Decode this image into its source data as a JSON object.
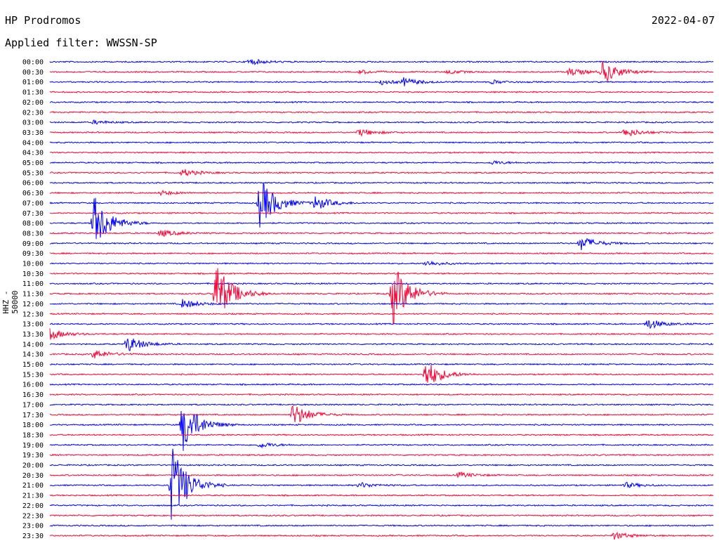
{
  "header": {
    "station": "HP Prodromos",
    "date": "2022-04-07",
    "filter_label": "Applied filter: WWSSN-SP"
  },
  "axis": {
    "ylabel": "HHZ - 50000"
  },
  "colors": {
    "trace_a": "#0000ff",
    "trace_b": "#ff0033",
    "text": "#000000"
  },
  "chart_data": {
    "type": "line",
    "title": "HP Prodromos",
    "subtitle": "Applied filter: WWSSN-SP",
    "ylabel": "HHZ - 50000",
    "xlabel": "",
    "row_labels": [
      "00:00",
      "00:30",
      "01:00",
      "01:30",
      "02:00",
      "02:30",
      "03:00",
      "03:30",
      "04:00",
      "04:30",
      "05:00",
      "05:30",
      "06:00",
      "06:30",
      "07:00",
      "07:30",
      "08:00",
      "08:30",
      "09:00",
      "09:30",
      "10:00",
      "10:30",
      "11:00",
      "11:30",
      "12:00",
      "12:30",
      "13:00",
      "13:30",
      "14:00",
      "14:30",
      "15:00",
      "15:30",
      "16:00",
      "16:30",
      "17:00",
      "17:30",
      "18:00",
      "18:30",
      "19:00",
      "19:30",
      "20:00",
      "20:30",
      "21:00",
      "21:30",
      "22:00",
      "22:30",
      "23:00",
      "23:30"
    ],
    "series": [
      {
        "values": [
          "00:00",
          "01:00",
          "02:00",
          "03:00",
          "04:00",
          "05:00",
          "06:00",
          "07:00",
          "08:00",
          "09:00",
          "10:00",
          "11:00",
          "12:00",
          "13:00",
          "14:00",
          "15:00",
          "16:00",
          "17:00",
          "18:00",
          "19:00",
          "20:00",
          "21:00",
          "22:00",
          "23:00"
        ]
      },
      {
        "values": [
          "00:30",
          "01:30",
          "02:30",
          "03:30",
          "04:30",
          "05:30",
          "06:30",
          "07:30",
          "08:30",
          "09:30",
          "10:30",
          "11:30",
          "12:30",
          "13:30",
          "14:30",
          "15:30",
          "16:30",
          "17:30",
          "18:30",
          "19:30",
          "20:30",
          "21:30",
          "22:30",
          "23:30"
        ]
      }
    ],
    "events": [
      {
        "row": "00:00",
        "minute": 9,
        "amp": 0.35
      },
      {
        "row": "00:30",
        "minute": 14,
        "amp": 0.2
      },
      {
        "row": "00:30",
        "minute": 18,
        "amp": 0.2
      },
      {
        "row": "00:30",
        "minute": 23.5,
        "amp": 0.45
      },
      {
        "row": "00:30",
        "minute": 25,
        "amp": 1.2
      },
      {
        "row": "01:00",
        "minute": 15,
        "amp": 0.25
      },
      {
        "row": "01:00",
        "minute": 16,
        "amp": 0.4
      },
      {
        "row": "01:00",
        "minute": 20,
        "amp": 0.2
      },
      {
        "row": "03:00",
        "minute": 2,
        "amp": 0.2
      },
      {
        "row": "03:30",
        "minute": 14,
        "amp": 0.4
      },
      {
        "row": "03:30",
        "minute": 26,
        "amp": 0.5
      },
      {
        "row": "05:00",
        "minute": 20,
        "amp": 0.2
      },
      {
        "row": "05:30",
        "minute": 6,
        "amp": 0.4
      },
      {
        "row": "06:30",
        "minute": 5,
        "amp": 0.25
      },
      {
        "row": "07:00",
        "minute": 9.5,
        "amp": 2.8
      },
      {
        "row": "07:00",
        "minute": 12,
        "amp": 0.8
      },
      {
        "row": "08:00",
        "minute": 2,
        "amp": 3.0
      },
      {
        "row": "08:30",
        "minute": 5,
        "amp": 0.4
      },
      {
        "row": "09:00",
        "minute": 24,
        "amp": 0.8
      },
      {
        "row": "10:00",
        "minute": 17,
        "amp": 0.3
      },
      {
        "row": "11:30",
        "minute": 7.5,
        "amp": 3.5
      },
      {
        "row": "11:30",
        "minute": 15.5,
        "amp": 3.5
      },
      {
        "row": "12:00",
        "minute": 6,
        "amp": 0.5
      },
      {
        "row": "13:00",
        "minute": 27,
        "amp": 0.6
      },
      {
        "row": "13:30",
        "minute": 0,
        "amp": 0.6
      },
      {
        "row": "14:00",
        "minute": 3.5,
        "amp": 0.9
      },
      {
        "row": "14:30",
        "minute": 2,
        "amp": 0.5
      },
      {
        "row": "15:30",
        "minute": 17,
        "amp": 1.6
      },
      {
        "row": "17:30",
        "minute": 11,
        "amp": 1.3
      },
      {
        "row": "18:00",
        "minute": 6,
        "amp": 3.0
      },
      {
        "row": "19:00",
        "minute": 9.5,
        "amp": 0.3
      },
      {
        "row": "20:30",
        "minute": 18.5,
        "amp": 0.3
      },
      {
        "row": "21:00",
        "minute": 5.5,
        "amp": 4.5
      },
      {
        "row": "21:00",
        "minute": 14,
        "amp": 0.3
      },
      {
        "row": "21:00",
        "minute": 26,
        "amp": 0.3
      },
      {
        "row": "23:30",
        "minute": 25.5,
        "amp": 0.4
      }
    ],
    "grid": false,
    "legend": "none"
  }
}
